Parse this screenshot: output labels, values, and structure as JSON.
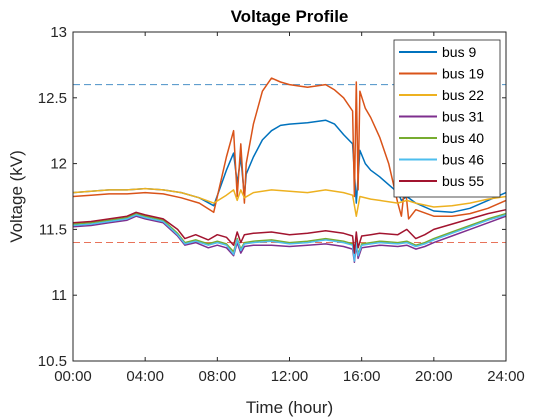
{
  "chart_data": {
    "type": "line",
    "title": "Voltage Profile",
    "xlabel": "Time (hour)",
    "ylabel": "Voltage (kV)",
    "xlim": [
      0,
      24
    ],
    "ylim": [
      10.5,
      13
    ],
    "x_ticks": [
      0,
      4,
      8,
      12,
      16,
      20,
      24
    ],
    "x_tick_labels": [
      "00:00",
      "04:00",
      "08:00",
      "12:00",
      "16:00",
      "20:00",
      "24:00"
    ],
    "y_ticks": [
      10.5,
      11,
      11.5,
      12,
      12.5,
      13
    ],
    "y_tick_labels": [
      "10.5",
      "11",
      "11.5",
      "12",
      "12.5",
      "13"
    ],
    "grid": false,
    "legend_position": "top-right",
    "reference_lines": [
      {
        "y": 12.6,
        "color": "#4a90c8",
        "style": "dashed"
      },
      {
        "y": 11.4,
        "color": "#e8735a",
        "style": "dashed"
      }
    ],
    "series": [
      {
        "name": "bus 9",
        "color": "#0072BD",
        "x": [
          0,
          1,
          2,
          3,
          4,
          5,
          6,
          7,
          7.8,
          8.5,
          8.9,
          9.1,
          9.3,
          9.5,
          9.6,
          10,
          10.5,
          11,
          11.5,
          12,
          13,
          14,
          14.5,
          15,
          15.5,
          15.7,
          15.9,
          16.2,
          16.5,
          17,
          17.5,
          18,
          18.2,
          18.5,
          19,
          20,
          21,
          22,
          23,
          24
        ],
        "y": [
          11.78,
          11.79,
          11.8,
          11.8,
          11.81,
          11.8,
          11.78,
          11.74,
          11.68,
          11.95,
          12.08,
          11.85,
          12.05,
          11.75,
          11.92,
          12.05,
          12.18,
          12.25,
          12.29,
          12.3,
          12.31,
          12.33,
          12.3,
          12.22,
          12.15,
          11.7,
          12.1,
          12.0,
          11.95,
          11.9,
          11.84,
          11.78,
          11.72,
          11.75,
          11.7,
          11.64,
          11.63,
          11.66,
          11.72,
          11.78
        ]
      },
      {
        "name": "bus 19",
        "color": "#D95319",
        "x": [
          0,
          1,
          2,
          3,
          4,
          5,
          6,
          7,
          7.8,
          8.5,
          8.9,
          9.1,
          9.3,
          9.5,
          9.6,
          10,
          10.5,
          11,
          11.5,
          12,
          13,
          14,
          14.5,
          15,
          15.5,
          15.6,
          15.7,
          15.8,
          15.9,
          16.2,
          16.5,
          17,
          17.5,
          18,
          18.2,
          18.4,
          18.6,
          19,
          20,
          21,
          22,
          23,
          24
        ],
        "y": [
          11.75,
          11.76,
          11.77,
          11.77,
          11.78,
          11.77,
          11.74,
          11.7,
          11.63,
          12.05,
          12.25,
          11.75,
          12.15,
          11.7,
          12.0,
          12.3,
          12.55,
          12.65,
          12.62,
          12.6,
          12.58,
          12.6,
          12.56,
          12.5,
          12.4,
          11.75,
          12.62,
          11.8,
          12.55,
          12.42,
          12.35,
          12.2,
          12.0,
          11.7,
          11.6,
          11.85,
          11.58,
          11.65,
          11.6,
          11.6,
          11.62,
          11.66,
          11.72
        ]
      },
      {
        "name": "bus 22",
        "color": "#EDB120",
        "x": [
          0,
          1,
          2,
          3,
          4,
          5,
          6,
          7,
          7.8,
          8.5,
          8.9,
          9.1,
          9.3,
          9.5,
          10,
          11,
          12,
          13,
          14,
          15,
          15.5,
          15.7,
          15.9,
          16.5,
          17,
          18,
          18.5,
          19,
          20,
          21,
          22,
          23,
          24
        ],
        "y": [
          11.78,
          11.79,
          11.8,
          11.8,
          11.81,
          11.8,
          11.78,
          11.74,
          11.7,
          11.76,
          11.8,
          11.72,
          11.8,
          11.74,
          11.78,
          11.8,
          11.79,
          11.78,
          11.8,
          11.78,
          11.76,
          11.6,
          11.75,
          11.73,
          11.72,
          11.7,
          11.72,
          11.7,
          11.67,
          11.68,
          11.7,
          11.73,
          11.75
        ]
      },
      {
        "name": "bus 31",
        "color": "#7E2F8E",
        "x": [
          0,
          1,
          2,
          3,
          3.5,
          4,
          5,
          5.8,
          6.2,
          6.8,
          7.5,
          8,
          8.5,
          8.9,
          9.1,
          9.3,
          9.5,
          10,
          11,
          12,
          13,
          14,
          15,
          15.5,
          15.6,
          15.7,
          15.8,
          16,
          16.5,
          17,
          18,
          18.5,
          19,
          19.5,
          20,
          21,
          22,
          23,
          24
        ],
        "y": [
          11.52,
          11.53,
          11.55,
          11.57,
          11.6,
          11.58,
          11.55,
          11.45,
          11.38,
          11.4,
          11.36,
          11.38,
          11.36,
          11.3,
          11.4,
          11.32,
          11.37,
          11.38,
          11.38,
          11.37,
          11.38,
          11.39,
          11.37,
          11.35,
          11.25,
          11.38,
          11.28,
          11.36,
          11.37,
          11.38,
          11.37,
          11.38,
          11.35,
          11.37,
          11.4,
          11.45,
          11.5,
          11.55,
          11.6
        ]
      },
      {
        "name": "bus 40",
        "color": "#77AC30",
        "x": [
          0,
          1,
          2,
          3,
          3.5,
          4,
          5,
          5.8,
          6.2,
          6.8,
          7.5,
          8,
          8.5,
          8.9,
          9.1,
          9.3,
          9.5,
          10,
          11,
          12,
          13,
          14,
          15,
          15.5,
          15.6,
          15.7,
          15.8,
          16,
          16.5,
          17,
          18,
          18.5,
          19,
          19.5,
          20,
          21,
          22,
          23,
          24
        ],
        "y": [
          11.54,
          11.55,
          11.57,
          11.59,
          11.62,
          11.6,
          11.57,
          11.47,
          11.4,
          11.42,
          11.39,
          11.41,
          11.39,
          11.33,
          11.43,
          11.35,
          11.4,
          11.41,
          11.42,
          11.4,
          11.41,
          11.43,
          11.41,
          11.39,
          11.28,
          11.41,
          11.31,
          11.39,
          11.4,
          11.41,
          11.4,
          11.41,
          11.38,
          11.4,
          11.43,
          11.48,
          11.53,
          11.58,
          11.62
        ]
      },
      {
        "name": "bus 46",
        "color": "#4DBEEE",
        "x": [
          0,
          1,
          2,
          3,
          3.5,
          4,
          5,
          5.8,
          6.2,
          6.8,
          7.5,
          8,
          8.5,
          8.9,
          9.1,
          9.3,
          9.5,
          10,
          11,
          12,
          13,
          14,
          15,
          15.5,
          15.6,
          15.7,
          15.8,
          16,
          16.5,
          17,
          18,
          18.5,
          19,
          19.5,
          20,
          21,
          22,
          23,
          24
        ],
        "y": [
          11.53,
          11.54,
          11.56,
          11.58,
          11.61,
          11.59,
          11.56,
          11.46,
          11.39,
          11.41,
          11.38,
          11.4,
          11.38,
          11.31,
          11.42,
          11.34,
          11.39,
          11.4,
          11.41,
          11.39,
          11.4,
          11.42,
          11.4,
          11.38,
          11.26,
          11.4,
          11.3,
          11.38,
          11.39,
          11.4,
          11.39,
          11.4,
          11.37,
          11.39,
          11.42,
          11.47,
          11.52,
          11.57,
          11.61
        ]
      },
      {
        "name": "bus 55",
        "color": "#A2142F",
        "x": [
          0,
          1,
          2,
          3,
          3.5,
          4,
          5,
          5.8,
          6.2,
          6.8,
          7.5,
          8,
          8.5,
          8.9,
          9.1,
          9.3,
          9.5,
          10,
          11,
          12,
          13,
          14,
          15,
          15.5,
          15.6,
          15.7,
          15.8,
          16,
          16.5,
          17,
          18,
          18.5,
          19,
          19.5,
          20,
          21,
          22,
          23,
          24
        ],
        "y": [
          11.55,
          11.56,
          11.58,
          11.6,
          11.63,
          11.61,
          11.58,
          11.5,
          11.43,
          11.46,
          11.42,
          11.46,
          11.44,
          11.38,
          11.48,
          11.4,
          11.46,
          11.47,
          11.48,
          11.46,
          11.47,
          11.49,
          11.47,
          11.45,
          11.32,
          11.48,
          11.36,
          11.45,
          11.46,
          11.47,
          11.46,
          11.5,
          11.43,
          11.46,
          11.5,
          11.54,
          11.58,
          11.62,
          11.65
        ]
      }
    ]
  }
}
